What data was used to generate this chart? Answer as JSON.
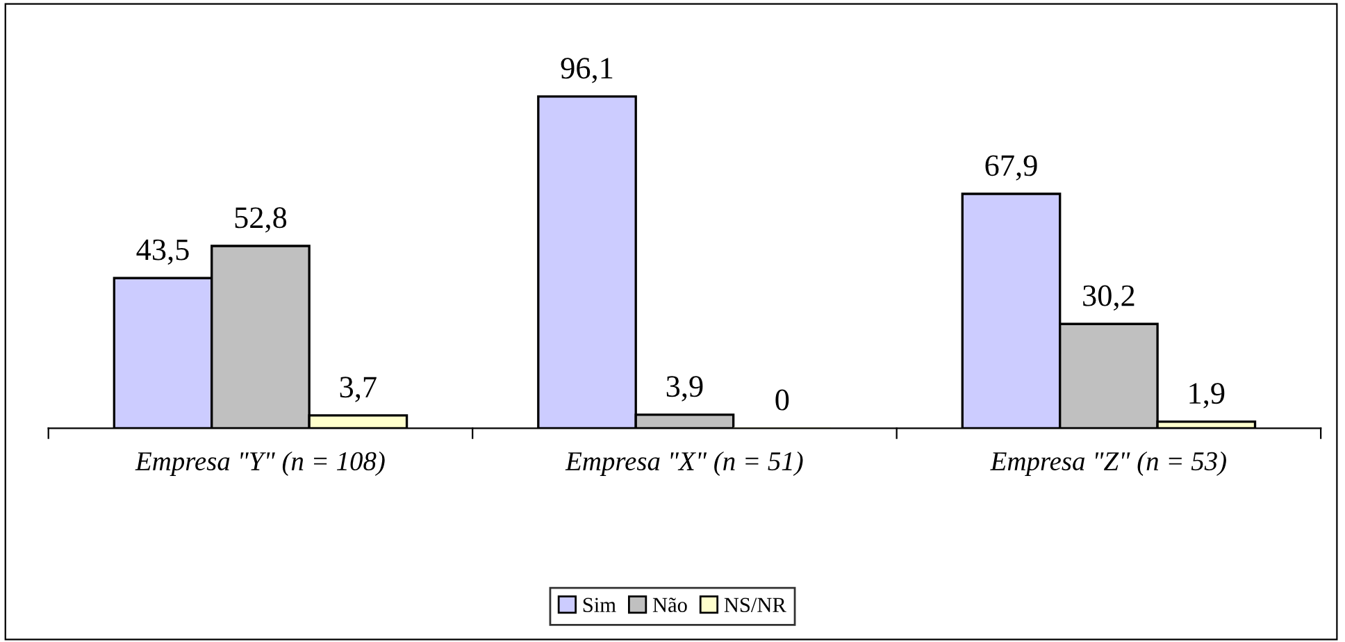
{
  "chart_data": {
    "type": "bar",
    "categories": [
      "Empresa \"Y\" (n = 108)",
      "Empresa \"X\" (n = 51)",
      "Empresa \"Z\" (n = 53)"
    ],
    "series": [
      {
        "name": "Sim",
        "color": "#ccccff",
        "values": [
          43.5,
          96.1,
          67.9
        ],
        "value_labels": [
          "43,5",
          "96,1",
          "67,9"
        ]
      },
      {
        "name": "Não",
        "color": "#c0c0c0",
        "values": [
          52.8,
          3.9,
          30.2
        ],
        "value_labels": [
          "52,8",
          "3,9",
          "30,2"
        ]
      },
      {
        "name": "NS/NR",
        "color": "#ffffcc",
        "values": [
          3.7,
          0,
          1.9
        ],
        "value_labels": [
          "3,7",
          "0",
          "1,9"
        ]
      }
    ],
    "legend": "bottom",
    "grid": false
  }
}
